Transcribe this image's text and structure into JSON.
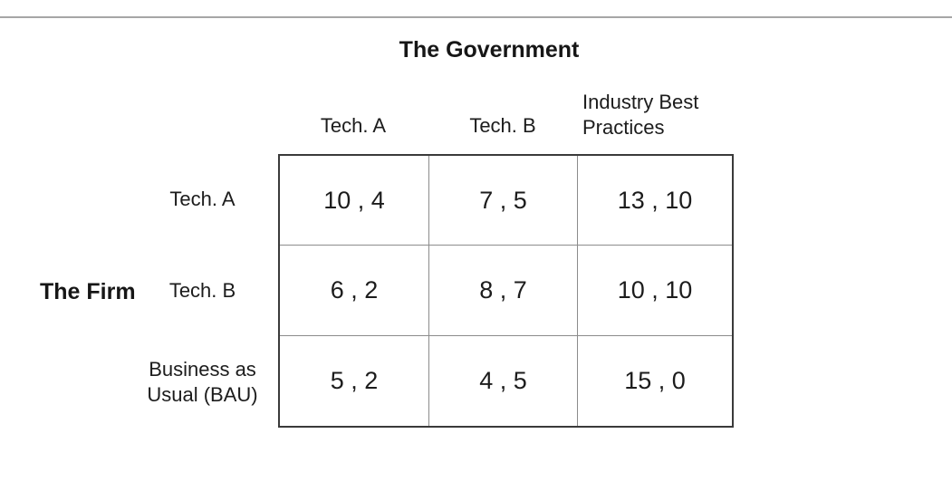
{
  "slide": {
    "column_player": "The Government",
    "row_player": "The Firm"
  },
  "matrix": {
    "column_headers": [
      "Tech. A",
      "Tech. B",
      "Industry Best Practices"
    ],
    "row_headers": [
      "Tech. A",
      "Tech. B",
      "Business as Usual (BAU)"
    ],
    "cells": [
      [
        "10 , 4",
        "7 , 5",
        "13 , 10"
      ],
      [
        "6 , 2",
        "8 , 7",
        "10 , 10"
      ],
      [
        "5 , 2",
        "4 , 5",
        "15 , 0"
      ]
    ]
  }
}
